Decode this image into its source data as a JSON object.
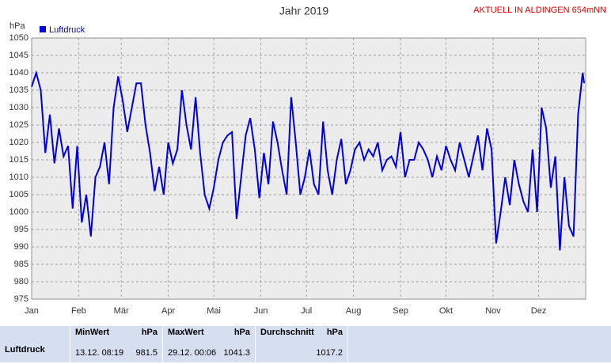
{
  "chart_data": {
    "type": "line",
    "title": "Jahr 2019",
    "header_right": "AKTUELL IN ALDINGEN 654mNN",
    "y_unit": "hPa",
    "x": [
      0,
      3,
      6,
      9,
      12,
      15,
      18,
      21,
      24,
      27,
      30,
      33,
      36,
      39,
      42,
      45,
      48,
      51,
      54,
      57,
      60,
      63,
      66,
      69,
      72,
      75,
      78,
      81,
      84,
      87,
      90,
      93,
      96,
      99,
      102,
      105,
      108,
      111,
      114,
      117,
      120,
      123,
      126,
      129,
      132,
      135,
      138,
      141,
      144,
      147,
      150,
      153,
      156,
      159,
      162,
      165,
      168,
      171,
      174,
      177,
      180,
      183,
      186,
      189,
      192,
      195,
      198,
      201,
      204,
      207,
      210,
      213,
      216,
      219,
      222,
      225,
      228,
      231,
      234,
      237,
      240,
      243,
      246,
      249,
      252,
      255,
      258,
      261,
      264,
      267,
      270,
      273,
      276,
      279,
      282,
      285,
      288,
      291,
      294,
      297,
      300,
      303,
      306,
      309,
      312,
      315,
      318,
      321,
      324,
      327,
      330,
      333,
      336,
      339,
      342,
      345,
      348,
      351,
      354,
      357,
      360,
      363,
      364
    ],
    "series": [
      {
        "name": "Luftdruck",
        "color": "#0000dd",
        "values": [
          1036,
          1040,
          1035,
          1017,
          1028,
          1014,
          1024,
          1016,
          1019,
          1001,
          1019,
          997,
          1005,
          993,
          1010,
          1013,
          1020,
          1008,
          1030,
          1039,
          1032,
          1023,
          1030,
          1037,
          1037,
          1025,
          1017,
          1006,
          1013,
          1005,
          1020,
          1014,
          1018,
          1035,
          1025,
          1018,
          1033,
          1017,
          1005,
          1001,
          1007,
          1015,
          1020,
          1022,
          1023,
          998,
          1010,
          1022,
          1027,
          1018,
          1004,
          1017,
          1008,
          1026,
          1020,
          1012,
          1005,
          1033,
          1020,
          1005,
          1010,
          1018,
          1008,
          1005,
          1026,
          1012,
          1005,
          1015,
          1021,
          1008,
          1012,
          1018,
          1020,
          1015,
          1018,
          1016,
          1020,
          1012,
          1015,
          1016,
          1013,
          1023,
          1010,
          1015,
          1015,
          1020,
          1018,
          1015,
          1010,
          1016,
          1012,
          1019,
          1015,
          1012,
          1020,
          1015,
          1010,
          1016,
          1022,
          1012,
          1024,
          1018,
          991,
          1000,
          1010,
          1002,
          1015,
          1008,
          1003,
          1000,
          1018,
          1000,
          1030,
          1024,
          1007,
          1016,
          989,
          1010,
          996,
          993,
          1028,
          1040,
          1037
        ]
      }
    ],
    "xlim": [
      0,
      365
    ],
    "xticks": [
      {
        "value": 0,
        "label": "Jan"
      },
      {
        "value": 31,
        "label": "Feb"
      },
      {
        "value": 59,
        "label": "Mär"
      },
      {
        "value": 90,
        "label": "Apr"
      },
      {
        "value": 120,
        "label": "Mai"
      },
      {
        "value": 151,
        "label": "Jun"
      },
      {
        "value": 181,
        "label": "Jul"
      },
      {
        "value": 212,
        "label": "Aug"
      },
      {
        "value": 243,
        "label": "Sep"
      },
      {
        "value": 273,
        "label": "Okt"
      },
      {
        "value": 304,
        "label": "Nov"
      },
      {
        "value": 334,
        "label": "Dez"
      }
    ],
    "ylim": [
      975,
      1050
    ],
    "yticks": [
      975,
      980,
      985,
      990,
      995,
      1000,
      1005,
      1010,
      1015,
      1020,
      1025,
      1030,
      1035,
      1040,
      1045,
      1050
    ],
    "grid": true
  },
  "stats": {
    "row_label": "Luftdruck",
    "columns": [
      {
        "header": "MinWert",
        "unit": "hPa",
        "time": "13.12.  08:19",
        "value": "981.5"
      },
      {
        "header": "MaxWert",
        "unit": "hPa",
        "time": "29.12.  00:06",
        "value": "1041.3"
      },
      {
        "header": "Durchschnitt",
        "unit": "hPa",
        "time": "",
        "value": "1017.2"
      }
    ]
  }
}
